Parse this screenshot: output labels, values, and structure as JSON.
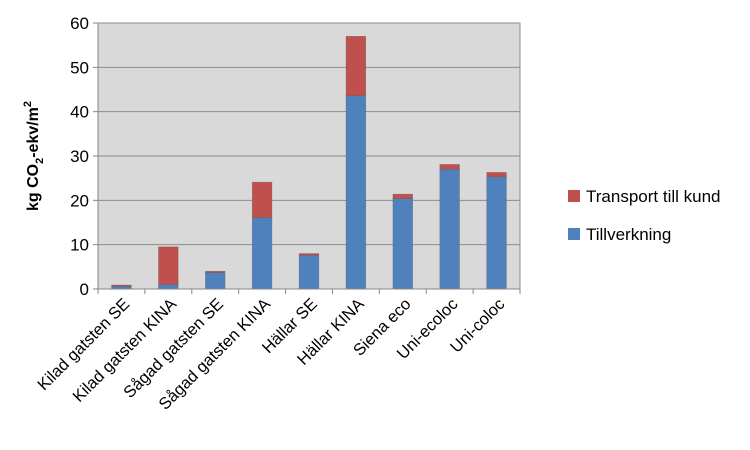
{
  "chart_data": {
    "type": "bar",
    "stacked": true,
    "categories": [
      "Kilad gatsten SE",
      "Kilad gatsten KINA",
      "Sågad gatsten SE",
      "Sågad gatsten KINA",
      "Hällar SE",
      "Hällar KINA",
      "Siena eco",
      "Uni-ecoloc",
      "Uni-coloc"
    ],
    "series": [
      {
        "name": "Tillverkning",
        "color": "#4f81bd",
        "values": [
          0.6,
          1.0,
          3.7,
          16.1,
          7.6,
          43.6,
          20.4,
          27.0,
          25.3
        ]
      },
      {
        "name": "Transport till kund",
        "color": "#c0504d",
        "values": [
          0.3,
          8.5,
          0.3,
          8.0,
          0.4,
          13.4,
          1.0,
          1.1,
          1.0
        ]
      }
    ],
    "ylabel": {
      "main": "kg CO",
      "sub": "2",
      "mid": "-ekv/m",
      "sup": "2"
    },
    "ylim": [
      0,
      60
    ],
    "yticks": [
      "0",
      "10",
      "20",
      "30",
      "40",
      "50",
      "60"
    ],
    "grid": true,
    "legend_position": "right",
    "plot_background": "#d9d9d9"
  }
}
